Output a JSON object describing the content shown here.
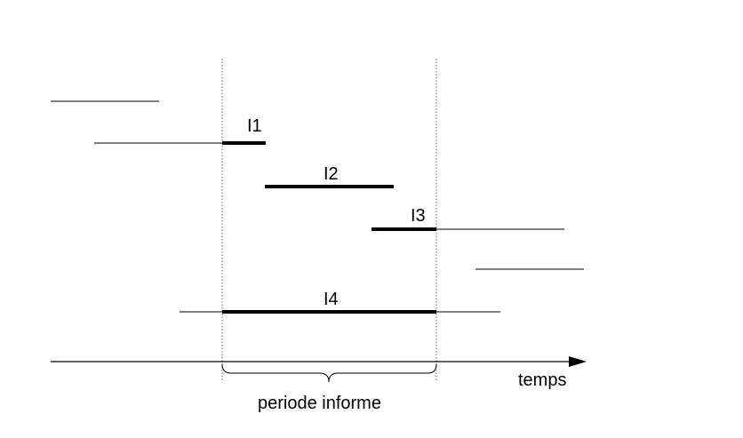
{
  "diagram": {
    "interval_labels": {
      "i1": "I1",
      "i2": "I2",
      "i3": "I3",
      "i4": "I4"
    },
    "axis_label": "temps",
    "period_label": "periode informe",
    "colors": {
      "ink": "#000000",
      "guide": "#666666"
    }
  }
}
